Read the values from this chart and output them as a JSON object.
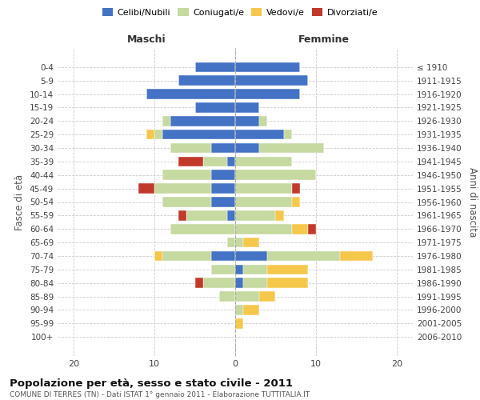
{
  "age_groups": [
    "0-4",
    "5-9",
    "10-14",
    "15-19",
    "20-24",
    "25-29",
    "30-34",
    "35-39",
    "40-44",
    "45-49",
    "50-54",
    "55-59",
    "60-64",
    "65-69",
    "70-74",
    "75-79",
    "80-84",
    "85-89",
    "90-94",
    "95-99",
    "100+"
  ],
  "birth_years": [
    "2006-2010",
    "2001-2005",
    "1996-2000",
    "1991-1995",
    "1986-1990",
    "1981-1985",
    "1976-1980",
    "1971-1975",
    "1966-1970",
    "1961-1965",
    "1956-1960",
    "1951-1955",
    "1946-1950",
    "1941-1945",
    "1936-1940",
    "1931-1935",
    "1926-1930",
    "1921-1925",
    "1916-1920",
    "1911-1915",
    "≤ 1910"
  ],
  "maschi": {
    "celibi": [
      5,
      7,
      11,
      5,
      8,
      9,
      3,
      1,
      3,
      3,
      3,
      1,
      0,
      0,
      3,
      0,
      0,
      0,
      0,
      0,
      0
    ],
    "coniugati": [
      0,
      0,
      0,
      0,
      1,
      1,
      5,
      3,
      6,
      7,
      6,
      5,
      8,
      1,
      6,
      3,
      4,
      2,
      0,
      0,
      0
    ],
    "vedovi": [
      0,
      0,
      0,
      0,
      0,
      1,
      0,
      0,
      0,
      0,
      0,
      0,
      0,
      0,
      1,
      0,
      0,
      0,
      0,
      0,
      0
    ],
    "divorziati": [
      0,
      0,
      0,
      0,
      0,
      0,
      0,
      3,
      0,
      2,
      0,
      1,
      0,
      0,
      0,
      0,
      1,
      0,
      0,
      0,
      0
    ]
  },
  "femmine": {
    "nubili": [
      8,
      9,
      8,
      3,
      3,
      6,
      3,
      0,
      0,
      0,
      0,
      0,
      0,
      0,
      4,
      1,
      1,
      0,
      0,
      0,
      0
    ],
    "coniugate": [
      0,
      0,
      0,
      0,
      1,
      1,
      8,
      7,
      10,
      7,
      7,
      5,
      7,
      1,
      9,
      3,
      3,
      3,
      1,
      0,
      0
    ],
    "vedove": [
      0,
      0,
      0,
      0,
      0,
      0,
      0,
      0,
      0,
      0,
      1,
      1,
      2,
      2,
      4,
      5,
      5,
      2,
      2,
      1,
      0
    ],
    "divorziate": [
      0,
      0,
      0,
      0,
      0,
      0,
      0,
      0,
      0,
      1,
      0,
      0,
      1,
      0,
      0,
      0,
      0,
      0,
      0,
      0,
      0
    ]
  },
  "colors": {
    "celibi": "#4472c4",
    "coniugati": "#c5d9a0",
    "vedovi": "#f5c84c",
    "divorziati": "#c0392b"
  },
  "xlim": [
    -22,
    22
  ],
  "xticks": [
    -20,
    -10,
    0,
    10,
    20
  ],
  "xticklabels": [
    "20",
    "10",
    "0",
    "10",
    "20"
  ],
  "title": "Popolazione per età, sesso e stato civile - 2011",
  "subtitle": "COMUNE DI TERRES (TN) - Dati ISTAT 1° gennaio 2011 - Elaborazione TUTTITALIA.IT",
  "ylabel_left": "Fasce di età",
  "ylabel_right": "Anni di nascita",
  "label_maschi": "Maschi",
  "label_femmine": "Femmine",
  "legend_labels": [
    "Celibi/Nubili",
    "Coniugati/e",
    "Vedovi/e",
    "Divorziati/e"
  ],
  "bg_color": "#ffffff",
  "bar_height": 0.75
}
